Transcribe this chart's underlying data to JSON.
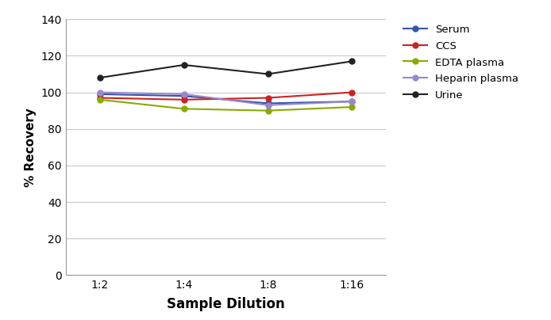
{
  "x_labels": [
    "1:2",
    "1:4",
    "1:8",
    "1:16"
  ],
  "x_values": [
    0,
    1,
    2,
    3
  ],
  "series": [
    {
      "name": "Serum",
      "color": "#3355aa",
      "values": [
        99,
        98,
        94,
        95
      ]
    },
    {
      "name": "CCS",
      "color": "#cc2222",
      "values": [
        97,
        96,
        97,
        100
      ]
    },
    {
      "name": "EDTA plasma",
      "color": "#88aa00",
      "values": [
        96,
        91,
        90,
        92
      ]
    },
    {
      "name": "Heparin plasma",
      "color": "#9988cc",
      "values": [
        100,
        99,
        93,
        95
      ]
    },
    {
      "name": "Urine",
      "color": "#222222",
      "values": [
        108,
        115,
        110,
        117
      ]
    }
  ],
  "ylabel": "% Recovery",
  "xlabel": "Sample Dilution",
  "ylim": [
    0,
    140
  ],
  "yticks": [
    0,
    20,
    40,
    60,
    80,
    100,
    120,
    140
  ],
  "grid_color": "#c8c8c8",
  "background_color": "#ffffff",
  "marker": "o",
  "linewidth": 1.5,
  "markersize": 5,
  "figsize": [
    6.94,
    4.04
  ],
  "dpi": 100
}
